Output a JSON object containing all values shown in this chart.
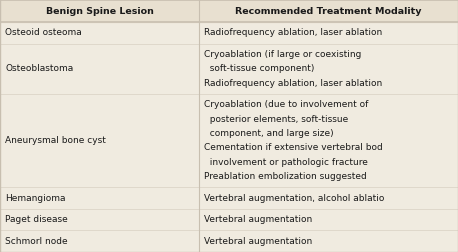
{
  "title_left": "Benign Spine Lesion",
  "title_right": "Recommended Treatment Modality",
  "header_bg": "#e8e0d0",
  "body_bg": "#f0ebe0",
  "border_color": "#c8bfb0",
  "header_text_color": "#1a1a1a",
  "body_text_color": "#1a1a1a",
  "col_split": 0.435,
  "rows": [
    {
      "left": "Osteoid osteoma",
      "right_lines": [
        "Radiofrequency ablation, laser ablation"
      ]
    },
    {
      "left": "Osteoblastoma",
      "right_lines": [
        "Cryoablation (if large or coexisting",
        "  soft-tissue component)",
        "Radiofrequency ablation, laser ablation"
      ]
    },
    {
      "left": "Aneurysmal bone cyst",
      "right_lines": [
        "Cryoablation (due to involvement of",
        "  posterior elements, soft-tissue",
        "  component, and large size)",
        "Cementation if extensive vertebral bod",
        "  involvement or pathologic fracture",
        "Preablation embolization suggested"
      ]
    },
    {
      "left": "Hemangioma",
      "right_lines": [
        "Vertebral augmentation, alcohol ablatio"
      ]
    },
    {
      "left": "Paget disease",
      "right_lines": [
        "Vertebral augmentation"
      ]
    },
    {
      "left": "Schmorl node",
      "right_lines": [
        "Vertebral augmentation"
      ]
    }
  ],
  "header_fontsize": 6.8,
  "body_fontsize": 6.5,
  "figsize": [
    4.58,
    2.52
  ],
  "dpi": 100
}
